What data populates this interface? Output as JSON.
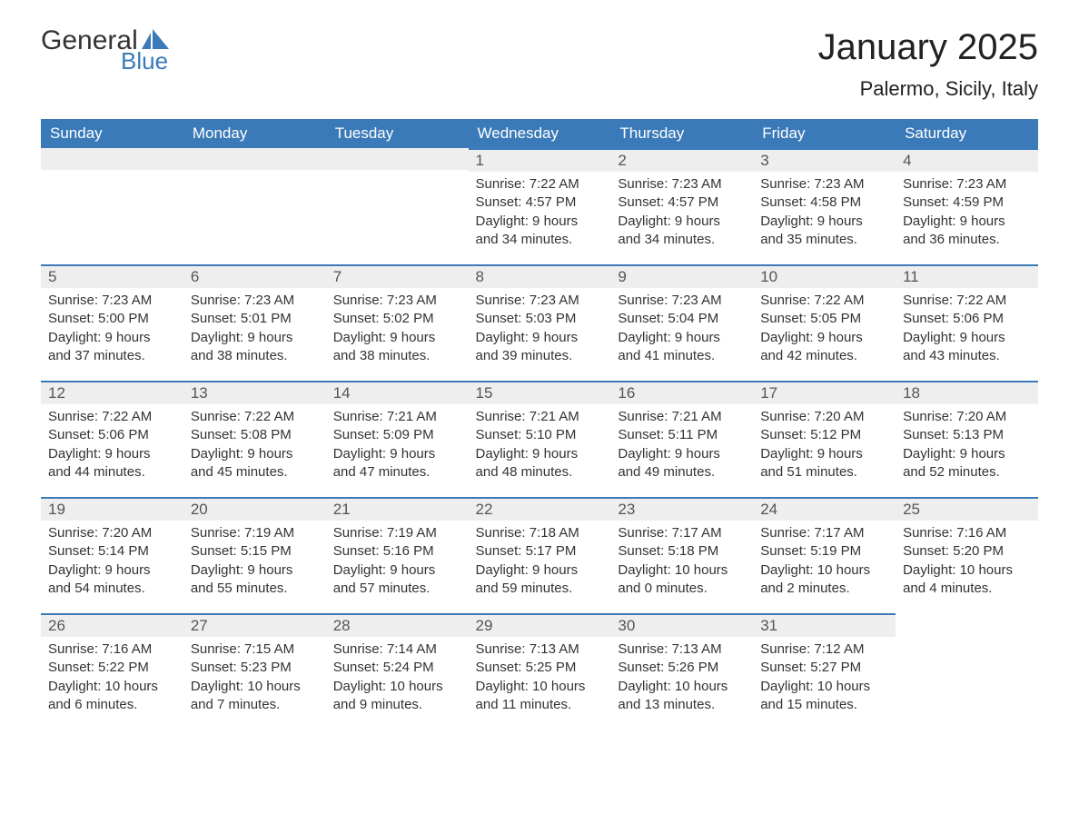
{
  "brand": {
    "general": "General",
    "blue": "Blue"
  },
  "title": "January 2025",
  "location": "Palermo, Sicily, Italy",
  "colors": {
    "header_bg": "#3a7ab8",
    "header_text": "#ffffff",
    "daynum_bg": "#eeeeee",
    "border": "#3a7ab8",
    "body_text": "#333333"
  },
  "day_headers": [
    "Sunday",
    "Monday",
    "Tuesday",
    "Wednesday",
    "Thursday",
    "Friday",
    "Saturday"
  ],
  "weeks": [
    [
      null,
      null,
      null,
      {
        "n": "1",
        "sr": "Sunrise: 7:22 AM",
        "ss": "Sunset: 4:57 PM",
        "d1": "Daylight: 9 hours",
        "d2": "and 34 minutes."
      },
      {
        "n": "2",
        "sr": "Sunrise: 7:23 AM",
        "ss": "Sunset: 4:57 PM",
        "d1": "Daylight: 9 hours",
        "d2": "and 34 minutes."
      },
      {
        "n": "3",
        "sr": "Sunrise: 7:23 AM",
        "ss": "Sunset: 4:58 PM",
        "d1": "Daylight: 9 hours",
        "d2": "and 35 minutes."
      },
      {
        "n": "4",
        "sr": "Sunrise: 7:23 AM",
        "ss": "Sunset: 4:59 PM",
        "d1": "Daylight: 9 hours",
        "d2": "and 36 minutes."
      }
    ],
    [
      {
        "n": "5",
        "sr": "Sunrise: 7:23 AM",
        "ss": "Sunset: 5:00 PM",
        "d1": "Daylight: 9 hours",
        "d2": "and 37 minutes."
      },
      {
        "n": "6",
        "sr": "Sunrise: 7:23 AM",
        "ss": "Sunset: 5:01 PM",
        "d1": "Daylight: 9 hours",
        "d2": "and 38 minutes."
      },
      {
        "n": "7",
        "sr": "Sunrise: 7:23 AM",
        "ss": "Sunset: 5:02 PM",
        "d1": "Daylight: 9 hours",
        "d2": "and 38 minutes."
      },
      {
        "n": "8",
        "sr": "Sunrise: 7:23 AM",
        "ss": "Sunset: 5:03 PM",
        "d1": "Daylight: 9 hours",
        "d2": "and 39 minutes."
      },
      {
        "n": "9",
        "sr": "Sunrise: 7:23 AM",
        "ss": "Sunset: 5:04 PM",
        "d1": "Daylight: 9 hours",
        "d2": "and 41 minutes."
      },
      {
        "n": "10",
        "sr": "Sunrise: 7:22 AM",
        "ss": "Sunset: 5:05 PM",
        "d1": "Daylight: 9 hours",
        "d2": "and 42 minutes."
      },
      {
        "n": "11",
        "sr": "Sunrise: 7:22 AM",
        "ss": "Sunset: 5:06 PM",
        "d1": "Daylight: 9 hours",
        "d2": "and 43 minutes."
      }
    ],
    [
      {
        "n": "12",
        "sr": "Sunrise: 7:22 AM",
        "ss": "Sunset: 5:06 PM",
        "d1": "Daylight: 9 hours",
        "d2": "and 44 minutes."
      },
      {
        "n": "13",
        "sr": "Sunrise: 7:22 AM",
        "ss": "Sunset: 5:08 PM",
        "d1": "Daylight: 9 hours",
        "d2": "and 45 minutes."
      },
      {
        "n": "14",
        "sr": "Sunrise: 7:21 AM",
        "ss": "Sunset: 5:09 PM",
        "d1": "Daylight: 9 hours",
        "d2": "and 47 minutes."
      },
      {
        "n": "15",
        "sr": "Sunrise: 7:21 AM",
        "ss": "Sunset: 5:10 PM",
        "d1": "Daylight: 9 hours",
        "d2": "and 48 minutes."
      },
      {
        "n": "16",
        "sr": "Sunrise: 7:21 AM",
        "ss": "Sunset: 5:11 PM",
        "d1": "Daylight: 9 hours",
        "d2": "and 49 minutes."
      },
      {
        "n": "17",
        "sr": "Sunrise: 7:20 AM",
        "ss": "Sunset: 5:12 PM",
        "d1": "Daylight: 9 hours",
        "d2": "and 51 minutes."
      },
      {
        "n": "18",
        "sr": "Sunrise: 7:20 AM",
        "ss": "Sunset: 5:13 PM",
        "d1": "Daylight: 9 hours",
        "d2": "and 52 minutes."
      }
    ],
    [
      {
        "n": "19",
        "sr": "Sunrise: 7:20 AM",
        "ss": "Sunset: 5:14 PM",
        "d1": "Daylight: 9 hours",
        "d2": "and 54 minutes."
      },
      {
        "n": "20",
        "sr": "Sunrise: 7:19 AM",
        "ss": "Sunset: 5:15 PM",
        "d1": "Daylight: 9 hours",
        "d2": "and 55 minutes."
      },
      {
        "n": "21",
        "sr": "Sunrise: 7:19 AM",
        "ss": "Sunset: 5:16 PM",
        "d1": "Daylight: 9 hours",
        "d2": "and 57 minutes."
      },
      {
        "n": "22",
        "sr": "Sunrise: 7:18 AM",
        "ss": "Sunset: 5:17 PM",
        "d1": "Daylight: 9 hours",
        "d2": "and 59 minutes."
      },
      {
        "n": "23",
        "sr": "Sunrise: 7:17 AM",
        "ss": "Sunset: 5:18 PM",
        "d1": "Daylight: 10 hours",
        "d2": "and 0 minutes."
      },
      {
        "n": "24",
        "sr": "Sunrise: 7:17 AM",
        "ss": "Sunset: 5:19 PM",
        "d1": "Daylight: 10 hours",
        "d2": "and 2 minutes."
      },
      {
        "n": "25",
        "sr": "Sunrise: 7:16 AM",
        "ss": "Sunset: 5:20 PM",
        "d1": "Daylight: 10 hours",
        "d2": "and 4 minutes."
      }
    ],
    [
      {
        "n": "26",
        "sr": "Sunrise: 7:16 AM",
        "ss": "Sunset: 5:22 PM",
        "d1": "Daylight: 10 hours",
        "d2": "and 6 minutes."
      },
      {
        "n": "27",
        "sr": "Sunrise: 7:15 AM",
        "ss": "Sunset: 5:23 PM",
        "d1": "Daylight: 10 hours",
        "d2": "and 7 minutes."
      },
      {
        "n": "28",
        "sr": "Sunrise: 7:14 AM",
        "ss": "Sunset: 5:24 PM",
        "d1": "Daylight: 10 hours",
        "d2": "and 9 minutes."
      },
      {
        "n": "29",
        "sr": "Sunrise: 7:13 AM",
        "ss": "Sunset: 5:25 PM",
        "d1": "Daylight: 10 hours",
        "d2": "and 11 minutes."
      },
      {
        "n": "30",
        "sr": "Sunrise: 7:13 AM",
        "ss": "Sunset: 5:26 PM",
        "d1": "Daylight: 10 hours",
        "d2": "and 13 minutes."
      },
      {
        "n": "31",
        "sr": "Sunrise: 7:12 AM",
        "ss": "Sunset: 5:27 PM",
        "d1": "Daylight: 10 hours",
        "d2": "and 15 minutes."
      },
      null
    ]
  ]
}
